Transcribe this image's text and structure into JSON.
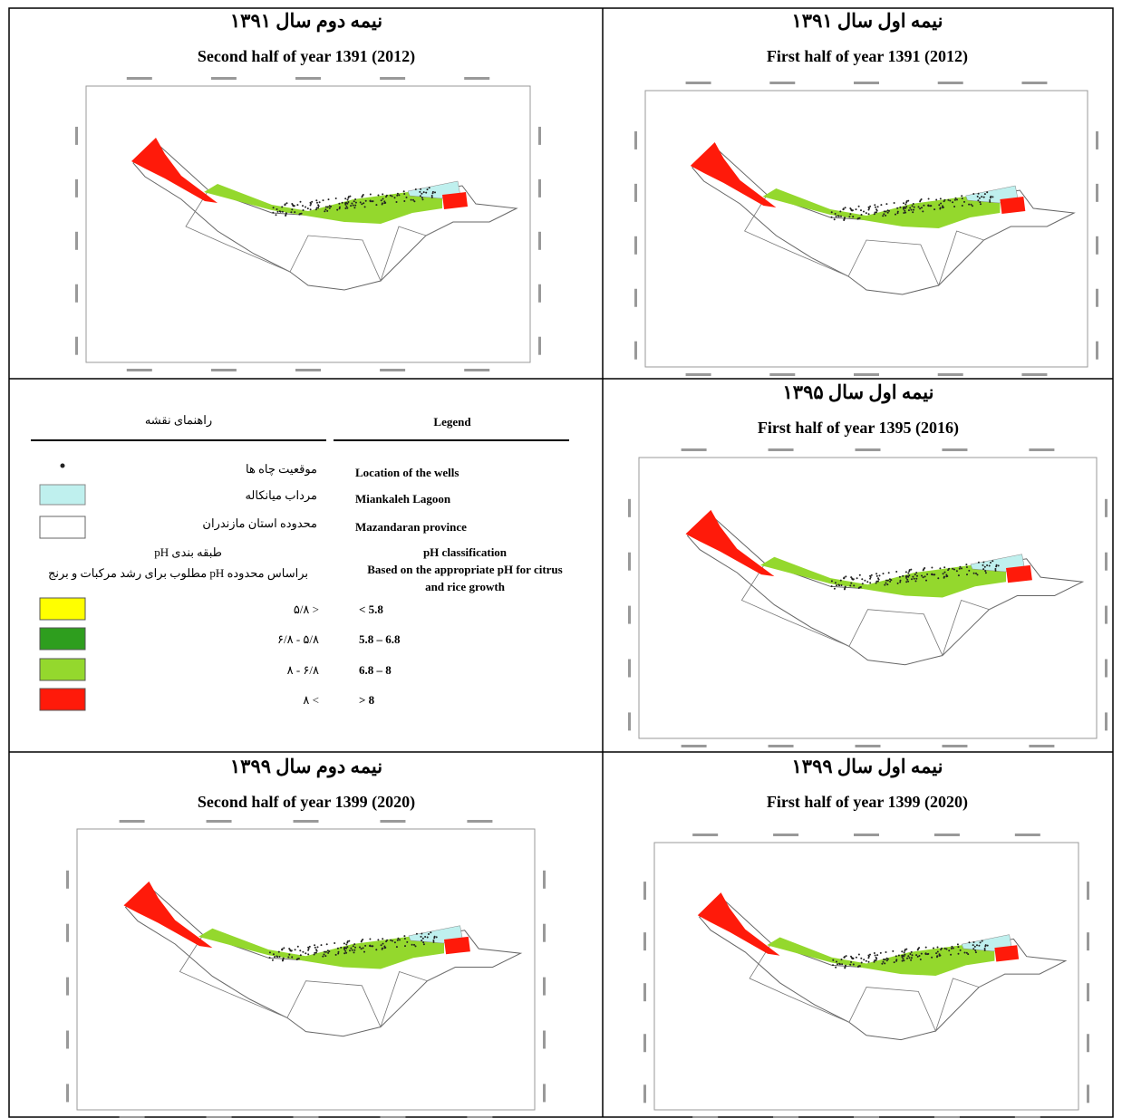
{
  "panels": [
    {
      "persian_title": "نیمه دوم سال ۱۳۹۱",
      "english_title": "Second half of year 1391 (2012)"
    },
    {
      "persian_title": "نیمه اول سال ۱۳۹۱",
      "english_title": "First half of year 1391 (2012)"
    },
    {
      "persian_title": "نیمه اول سال ۱۳۹۵",
      "english_title": "First half of year 1395 (2016)"
    },
    {
      "persian_title": "نیمه دوم سال ۱۳۹۹",
      "english_title": "Second half of year 1399 (2020)"
    },
    {
      "persian_title": "نیمه اول سال ۱۳۹۹",
      "english_title": "First half of year 1399 (2020)"
    }
  ],
  "legend": {
    "persian_header": "راهنمای نقشه",
    "english_header": "Legend",
    "items": [
      {
        "persian": "موقعیت چاه ها",
        "english": "Location of the wells"
      },
      {
        "persian": "مرداب میانکاله",
        "english": "Miankaleh Lagoon"
      },
      {
        "persian": "محدوده استان مازندران",
        "english": "Mazandaran province"
      }
    ],
    "classification": {
      "persian": [
        "طبقه بندی pH",
        "براساس محدوده pH مطلوب برای رشد مرکبات و برنج"
      ],
      "english": [
        "pH classification",
        "Based on the appropriate pH for citrus",
        "and rice growth"
      ]
    },
    "classes": [
      {
        "persian": "< ۵/۸",
        "english": "< 5.8",
        "color": "#ffff00"
      },
      {
        "persian": "۵/۸ - ۶/۸",
        "english": "5.8 – 6.8",
        "color": "#2e9e1e"
      },
      {
        "persian": "۶/۸ - ۸",
        "english": "6.8 – 8",
        "color": "#94d82d"
      },
      {
        "persian": "> ۸",
        "english": "> 8",
        "color": "#ff1a0a"
      }
    ]
  }
}
